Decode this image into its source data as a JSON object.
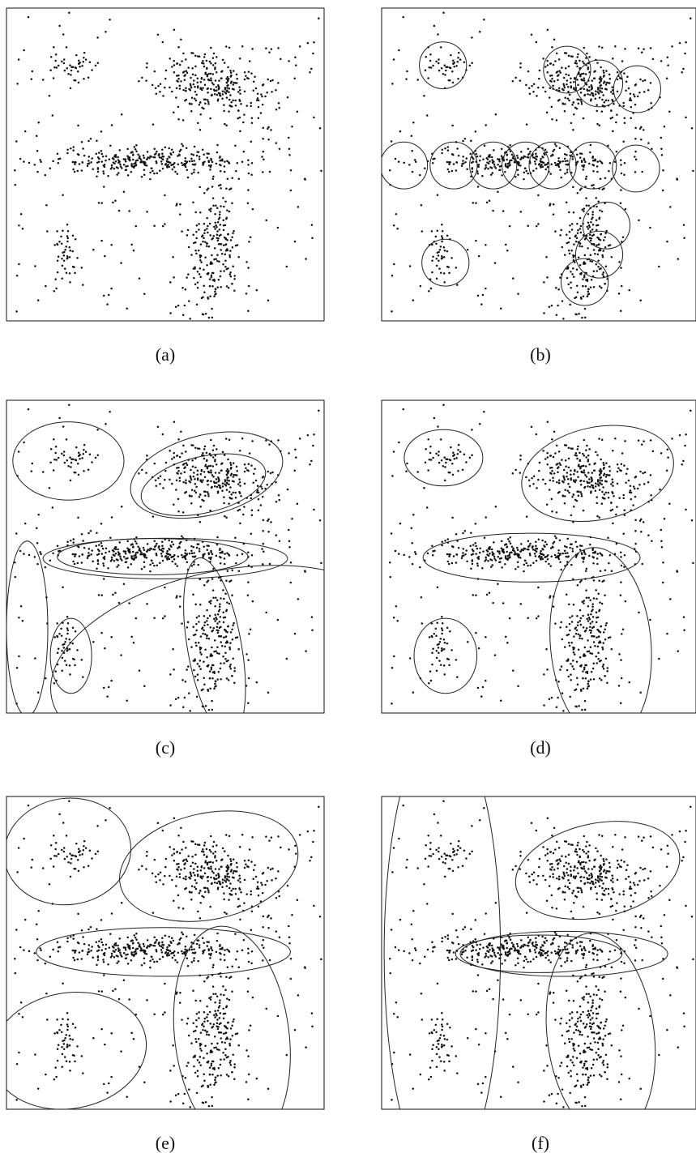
{
  "figure": {
    "panels": [
      {
        "id": "a",
        "caption": "(a)"
      },
      {
        "id": "b",
        "caption": "(b)"
      },
      {
        "id": "c",
        "caption": "(c)"
      },
      {
        "id": "d",
        "caption": "(d)"
      },
      {
        "id": "e",
        "caption": "(e)"
      },
      {
        "id": "f",
        "caption": "(f)"
      }
    ]
  },
  "chart_data": {
    "type": "scatter",
    "title": "",
    "xlabel": "",
    "ylabel": "",
    "xlim": [
      0,
      1
    ],
    "ylim": [
      0,
      1
    ],
    "grid": false,
    "axes_ticks": false,
    "point_color": "#111111",
    "shared_points": {
      "description_of_generation": "same point cloud shown in every panel",
      "clusters": [
        {
          "center": [
            0.2,
            0.81
          ],
          "spread": [
            0.03,
            0.035
          ],
          "angle_deg": 0,
          "n": 40
        },
        {
          "center": [
            0.65,
            0.75
          ],
          "spread": [
            0.09,
            0.048
          ],
          "angle_deg": -20,
          "n": 260
        },
        {
          "center": [
            0.46,
            0.51
          ],
          "spread": [
            0.17,
            0.022
          ],
          "angle_deg": 0,
          "n": 300
        },
        {
          "center": [
            0.66,
            0.23
          ],
          "spread": [
            0.045,
            0.11
          ],
          "angle_deg": -10,
          "n": 220
        },
        {
          "center": [
            0.19,
            0.2
          ],
          "spread": [
            0.025,
            0.045
          ],
          "angle_deg": 0,
          "n": 40
        }
      ],
      "uniform_background_n": 200,
      "seed": 7
    },
    "panels": [
      {
        "id": "a",
        "type": "scatter",
        "overlays": []
      },
      {
        "id": "b",
        "type": "scatter",
        "overlays": [
          {
            "shape": "ellipse",
            "cx": 0.195,
            "cy": 0.817,
            "rx": 0.075,
            "ry": 0.075,
            "angle": 0
          },
          {
            "shape": "ellipse",
            "cx": 0.59,
            "cy": 0.803,
            "rx": 0.075,
            "ry": 0.075,
            "angle": 0
          },
          {
            "shape": "ellipse",
            "cx": 0.692,
            "cy": 0.759,
            "rx": 0.075,
            "ry": 0.075,
            "angle": 0
          },
          {
            "shape": "ellipse",
            "cx": 0.813,
            "cy": 0.741,
            "rx": 0.075,
            "ry": 0.075,
            "angle": 0
          },
          {
            "shape": "ellipse",
            "cx": 0.071,
            "cy": 0.497,
            "rx": 0.075,
            "ry": 0.075,
            "angle": 0
          },
          {
            "shape": "ellipse",
            "cx": 0.229,
            "cy": 0.497,
            "rx": 0.075,
            "ry": 0.075,
            "angle": 0
          },
          {
            "shape": "ellipse",
            "cx": 0.355,
            "cy": 0.497,
            "rx": 0.075,
            "ry": 0.075,
            "angle": 0
          },
          {
            "shape": "ellipse",
            "cx": 0.458,
            "cy": 0.497,
            "rx": 0.075,
            "ry": 0.075,
            "angle": 0
          },
          {
            "shape": "ellipse",
            "cx": 0.544,
            "cy": 0.497,
            "rx": 0.075,
            "ry": 0.075,
            "angle": 0
          },
          {
            "shape": "ellipse",
            "cx": 0.672,
            "cy": 0.497,
            "rx": 0.075,
            "ry": 0.075,
            "angle": 0
          },
          {
            "shape": "ellipse",
            "cx": 0.809,
            "cy": 0.487,
            "rx": 0.075,
            "ry": 0.075,
            "angle": 0
          },
          {
            "shape": "ellipse",
            "cx": 0.715,
            "cy": 0.305,
            "rx": 0.075,
            "ry": 0.075,
            "angle": 0
          },
          {
            "shape": "ellipse",
            "cx": 0.692,
            "cy": 0.212,
            "rx": 0.075,
            "ry": 0.075,
            "angle": 0
          },
          {
            "shape": "ellipse",
            "cx": 0.646,
            "cy": 0.124,
            "rx": 0.075,
            "ry": 0.075,
            "angle": 0
          },
          {
            "shape": "ellipse",
            "cx": 0.203,
            "cy": 0.186,
            "rx": 0.075,
            "ry": 0.075,
            "angle": 0
          }
        ]
      },
      {
        "id": "c",
        "type": "scatter",
        "overlays": [
          {
            "shape": "ellipse",
            "cx": 0.195,
            "cy": 0.806,
            "rx": 0.175,
            "ry": 0.125,
            "angle": 0
          },
          {
            "shape": "ellipse",
            "cx": 0.63,
            "cy": 0.761,
            "rx": 0.245,
            "ry": 0.128,
            "angle": -14
          },
          {
            "shape": "ellipse",
            "cx": 0.62,
            "cy": 0.73,
            "rx": 0.2,
            "ry": 0.09,
            "angle": -13
          },
          {
            "shape": "ellipse",
            "cx": 0.5,
            "cy": 0.494,
            "rx": 0.385,
            "ry": 0.065,
            "angle": 0
          },
          {
            "shape": "ellipse",
            "cx": 0.46,
            "cy": 0.5,
            "rx": 0.3,
            "ry": 0.058,
            "angle": 0
          },
          {
            "shape": "ellipse",
            "cx": 0.065,
            "cy": 0.27,
            "rx": 0.065,
            "ry": 0.28,
            "angle": 0
          },
          {
            "shape": "ellipse",
            "cx": 0.203,
            "cy": 0.183,
            "rx": 0.065,
            "ry": 0.12,
            "angle": 0
          },
          {
            "shape": "ellipse",
            "cx": 0.655,
            "cy": 0.21,
            "rx": 0.085,
            "ry": 0.29,
            "angle": -10
          },
          {
            "shape": "ellipse",
            "cx": 0.69,
            "cy": 0.165,
            "rx": 0.56,
            "ry": 0.29,
            "angle": -12
          }
        ]
      },
      {
        "id": "d",
        "type": "scatter",
        "overlays": [
          {
            "shape": "ellipse",
            "cx": 0.197,
            "cy": 0.816,
            "rx": 0.125,
            "ry": 0.09,
            "angle": 0
          },
          {
            "shape": "ellipse",
            "cx": 0.687,
            "cy": 0.766,
            "rx": 0.245,
            "ry": 0.148,
            "angle": -12
          },
          {
            "shape": "ellipse",
            "cx": 0.477,
            "cy": 0.497,
            "rx": 0.345,
            "ry": 0.078,
            "angle": 0
          },
          {
            "shape": "ellipse",
            "cx": 0.203,
            "cy": 0.183,
            "rx": 0.1,
            "ry": 0.12,
            "angle": 0
          },
          {
            "shape": "ellipse",
            "cx": 0.697,
            "cy": 0.22,
            "rx": 0.16,
            "ry": 0.31,
            "angle": -5
          }
        ]
      },
      {
        "id": "e",
        "type": "scatter",
        "overlays": [
          {
            "shape": "ellipse",
            "cx": 0.192,
            "cy": 0.824,
            "rx": 0.2,
            "ry": 0.17,
            "angle": -8
          },
          {
            "shape": "ellipse",
            "cx": 0.637,
            "cy": 0.777,
            "rx": 0.285,
            "ry": 0.17,
            "angle": -12
          },
          {
            "shape": "ellipse",
            "cx": 0.494,
            "cy": 0.503,
            "rx": 0.4,
            "ry": 0.078,
            "angle": 0
          },
          {
            "shape": "ellipse",
            "cx": 0.197,
            "cy": 0.187,
            "rx": 0.245,
            "ry": 0.185,
            "angle": -10
          },
          {
            "shape": "ellipse",
            "cx": 0.71,
            "cy": 0.232,
            "rx": 0.18,
            "ry": 0.355,
            "angle": -7
          }
        ]
      },
      {
        "id": "f",
        "type": "scatter",
        "overlays": [
          {
            "shape": "ellipse",
            "cx": 0.193,
            "cy": 0.5,
            "rx": 0.185,
            "ry": 0.73,
            "angle": 0
          },
          {
            "shape": "ellipse",
            "cx": 0.687,
            "cy": 0.764,
            "rx": 0.265,
            "ry": 0.15,
            "angle": -12
          },
          {
            "shape": "ellipse",
            "cx": 0.58,
            "cy": 0.497,
            "rx": 0.33,
            "ry": 0.072,
            "angle": 0
          },
          {
            "shape": "ellipse",
            "cx": 0.5,
            "cy": 0.497,
            "rx": 0.265,
            "ry": 0.06,
            "angle": 0
          },
          {
            "shape": "ellipse",
            "cx": 0.697,
            "cy": 0.235,
            "rx": 0.17,
            "ry": 0.33,
            "angle": -7
          }
        ]
      }
    ]
  }
}
